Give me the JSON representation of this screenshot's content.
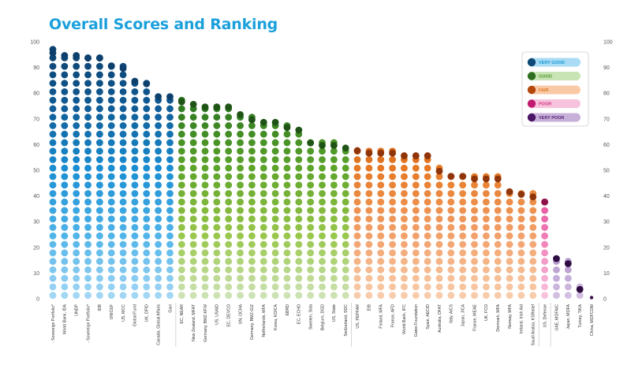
{
  "chart_data": {
    "type": "bar",
    "title": "Overall Scores and Ranking",
    "ylim": [
      0,
      100
    ],
    "yticks": [
      0,
      10,
      20,
      30,
      40,
      50,
      60,
      70,
      80,
      90,
      100
    ],
    "grid": false,
    "legend_position": "top-right",
    "legend": [
      {
        "label": "VERY GOOD",
        "color": "#0d4a77",
        "fill": "#a9dbf5",
        "text_color": "#1a9ad6"
      },
      {
        "label": "GOOD",
        "color": "#2e6e1f",
        "fill": "#c8e3b4",
        "text_color": "#4c9a2a"
      },
      {
        "label": "FAIR",
        "color": "#b4470c",
        "fill": "#f8c9a4",
        "text_color": "#e07a2a"
      },
      {
        "label": "POOR",
        "color": "#c21a70",
        "fill": "#f7c3dc",
        "text_color": "#d63384"
      },
      {
        "label": "VERY POOR",
        "color": "#4b1565",
        "fill": "#c7b0d8",
        "text_color": "#5b2479"
      }
    ],
    "categories": [
      "- Sovereign Portfolio*",
      "World Bank, IDA",
      "UNDP",
      "- Sovereign Portfolio*",
      "IDB",
      "UNICEF",
      "US, MCC",
      "Global Fund",
      "UK, DFID",
      "Canada, Global Affairs",
      "Gavi",
      "EC, NEAR",
      "New Zealand, MFAT",
      "Germany, BMZ-KFW",
      "US, USAID",
      "EC, DEVCO",
      "UN, OCHA",
      "Germany, BMZ-GIZ",
      "Netherlands, MFA",
      "Korea, KOICA",
      "EBRD",
      "EC, ECHO",
      "Sweden, Sida",
      "Belgium, DGD",
      "US, State",
      "Switzerland, SDC",
      "US, PEPFAR",
      "EIB",
      "Finland, MFA",
      "France, AFD",
      "World Bank, IFC",
      "Gates Foundation",
      "Spain, AECID",
      "Australia, DFAT",
      "Italy, AICS",
      "Japan, JICA",
      "France, MEAE",
      "UK, FCO",
      "Denmark, MFA",
      "Norway, MFA",
      "Ireland, Irish Aid",
      "Saudi Arabia, KSRelief",
      "US, Defense",
      "UAE, MOFAIC",
      "Japan, MOFA",
      "Turkey, TIKA",
      "China, MOFCOM"
    ],
    "values": [
      97,
      96,
      96,
      95,
      95,
      92,
      91,
      86,
      85,
      80,
      80,
      78,
      77,
      76,
      76,
      76,
      73,
      71,
      70,
      70,
      68,
      67,
      62,
      61,
      61,
      60,
      59,
      58,
      58,
      58,
      57,
      57,
      57,
      51,
      49,
      49,
      48,
      48,
      48,
      43,
      42,
      41,
      39,
      17,
      15,
      5,
      1
    ],
    "rating": [
      "very good",
      "very good",
      "very good",
      "very good",
      "very good",
      "very good",
      "very good",
      "very good",
      "very good",
      "very good",
      "very good",
      "good",
      "good",
      "good",
      "good",
      "good",
      "good",
      "good",
      "good",
      "good",
      "good",
      "good",
      "good",
      "good",
      "good",
      "good",
      "fair",
      "fair",
      "fair",
      "fair",
      "fair",
      "fair",
      "fair",
      "fair",
      "fair",
      "fair",
      "fair",
      "fair",
      "fair",
      "fair",
      "fair",
      "fair",
      "poor",
      "very poor",
      "very poor",
      "very poor",
      "very poor"
    ]
  }
}
